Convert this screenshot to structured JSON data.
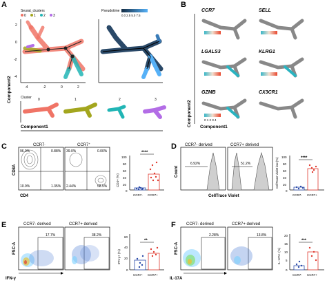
{
  "panel_letters": [
    "A",
    "B",
    "C",
    "D",
    "E",
    "F"
  ],
  "panelA": {
    "legend_title": "Seurat_clusters",
    "clusters": [
      {
        "label": "0",
        "color": "#f07466"
      },
      {
        "label": "1",
        "color": "#a3a61e"
      },
      {
        "label": "2",
        "color": "#21b5b5"
      },
      {
        "label": "3",
        "color": "#b36de6"
      }
    ],
    "pseudotime_title": "Pseudotime",
    "pseudotime_ticks": "0.0 2.5 5.0 7.5",
    "x_ticks": [
      "-4",
      "-2",
      "0",
      "2"
    ],
    "y_ticks": [
      "2",
      "0",
      "-2",
      "-4"
    ],
    "facet_header": "Cluster",
    "facet_labels": [
      "0",
      "1",
      "2",
      "3"
    ],
    "y_axis_label": "Component2",
    "x_axis_label": "Component1"
  },
  "panelB": {
    "genes": [
      "CCR7",
      "SELL",
      "LGALS3",
      "KLRG1",
      "GZMB",
      "CX3CR1"
    ],
    "scale_ticks": "0 1 2 3 4",
    "y_axis_label": "Component2",
    "x_axis_label": "Component1"
  },
  "panelC": {
    "header_neg": "CCR7",
    "header_neg_sup": "-",
    "header_pos": "CCR7",
    "header_pos_sup": "+",
    "q_neg": [
      "96.9%",
      "0.88%",
      "10.9%",
      "1.35%"
    ],
    "q_pos": [
      "39.0%",
      "0.00%",
      "2.44%",
      "58.5%"
    ],
    "y_label": "CD8A",
    "x_label": "CD4",
    "bar_ylabel": "CD4+ (%)",
    "sig": "****",
    "y_ticks": [
      "100",
      "80",
      "60",
      "40",
      "20",
      "0"
    ],
    "categories": [
      "CCR7-",
      "CCR7+"
    ]
  },
  "panelD": {
    "header_neg": "CCR7- derived",
    "header_pos": "CCR7+ derived",
    "gate_neg": "6.92%",
    "gate_pos": "51.2%",
    "y_label": "Count",
    "x_label": "CellTrace Violet",
    "bar_ylabel": "CellTrace Violet low (%)",
    "sig": "****",
    "y_ticks": [
      "100",
      "80",
      "60",
      "40",
      "20",
      "0"
    ],
    "categories": [
      "CCR7-",
      "CCR7+"
    ]
  },
  "panelE": {
    "header_neg": "CCR7- derived",
    "header_pos": "CCR7+ derived",
    "gate_neg": "17.7%",
    "gate_pos": "38.2%",
    "y_label": "FSC-A",
    "x_label": "IFN-γ",
    "bar_ylabel": "IFN-γ+ (%)",
    "sig": "**",
    "y_ticks": [
      "60",
      "40",
      "20",
      "0"
    ],
    "categories": [
      "CCR7-",
      "CCR7+"
    ]
  },
  "panelF": {
    "header_neg": "CCR7- derived",
    "header_pos": "CCR7+ derived",
    "gate_neg": "2.28%",
    "gate_pos": "13.8%",
    "y_label": "FSC-A",
    "x_label": "IL-17A",
    "bar_ylabel": "IL-17A+ (%)",
    "sig": "***",
    "y_ticks": [
      "20",
      "15",
      "10",
      "5",
      "0"
    ],
    "categories": [
      "CCR7-",
      "CCR7+"
    ]
  }
}
